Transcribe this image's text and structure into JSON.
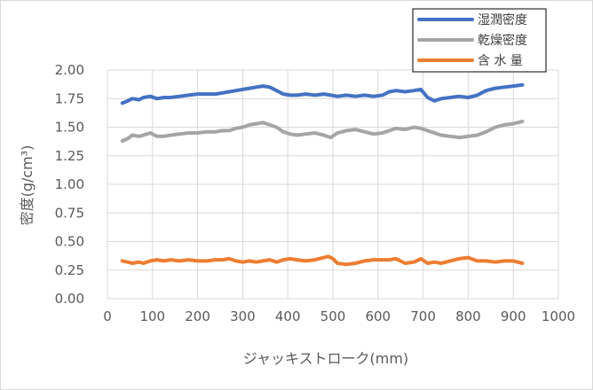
{
  "chart_data": {
    "type": "line",
    "xlabel": "ジャッキストローク(mm)",
    "ylabel": "密度(g/cm³)",
    "xlim": [
      0,
      1000
    ],
    "ylim": [
      0,
      2.0
    ],
    "xticks": [
      0,
      100,
      200,
      300,
      400,
      500,
      600,
      700,
      800,
      900,
      1000
    ],
    "xtick_labels": [
      "0",
      "100",
      "200",
      "300",
      "400",
      "500",
      "600",
      "700",
      "800",
      "900",
      "1000"
    ],
    "yticks": [
      0,
      0.25,
      0.5,
      0.75,
      1.0,
      1.25,
      1.5,
      1.75,
      2.0
    ],
    "ytick_labels": [
      "0.00",
      "0.25",
      "0.50",
      "0.75",
      "1.00",
      "1.25",
      "1.50",
      "1.75",
      "2.00"
    ],
    "grid": true,
    "legend_position": "top-right",
    "series": [
      {
        "name": "湿潤密度",
        "color": "#4472C4",
        "x": [
          33,
          45,
          55,
          70,
          80,
          95,
          110,
          125,
          140,
          160,
          180,
          200,
          220,
          240,
          255,
          270,
          285,
          300,
          315,
          330,
          345,
          360,
          375,
          390,
          405,
          420,
          440,
          460,
          480,
          495,
          510,
          530,
          550,
          570,
          590,
          610,
          625,
          640,
          660,
          680,
          695,
          710,
          725,
          740,
          760,
          780,
          800,
          820,
          840,
          860,
          880,
          900,
          920
        ],
        "y": [
          1.71,
          1.73,
          1.75,
          1.74,
          1.76,
          1.77,
          1.75,
          1.76,
          1.76,
          1.77,
          1.78,
          1.79,
          1.79,
          1.79,
          1.8,
          1.81,
          1.82,
          1.83,
          1.84,
          1.85,
          1.86,
          1.85,
          1.82,
          1.79,
          1.78,
          1.78,
          1.79,
          1.78,
          1.79,
          1.78,
          1.77,
          1.78,
          1.77,
          1.78,
          1.77,
          1.78,
          1.81,
          1.82,
          1.81,
          1.82,
          1.83,
          1.76,
          1.73,
          1.75,
          1.76,
          1.77,
          1.76,
          1.78,
          1.82,
          1.84,
          1.85,
          1.86,
          1.87
        ]
      },
      {
        "name": "乾燥密度",
        "color": "#A5A5A5",
        "x": [
          33,
          45,
          55,
          70,
          80,
          95,
          110,
          125,
          140,
          160,
          180,
          200,
          220,
          240,
          255,
          270,
          285,
          300,
          315,
          330,
          345,
          360,
          375,
          390,
          405,
          420,
          440,
          460,
          480,
          495,
          510,
          530,
          550,
          570,
          590,
          610,
          625,
          640,
          660,
          680,
          695,
          710,
          725,
          740,
          760,
          780,
          800,
          820,
          840,
          860,
          880,
          900,
          920
        ],
        "y": [
          1.38,
          1.4,
          1.43,
          1.42,
          1.43,
          1.45,
          1.42,
          1.42,
          1.43,
          1.44,
          1.45,
          1.45,
          1.46,
          1.46,
          1.47,
          1.47,
          1.49,
          1.5,
          1.52,
          1.53,
          1.54,
          1.52,
          1.5,
          1.46,
          1.44,
          1.43,
          1.44,
          1.45,
          1.43,
          1.41,
          1.45,
          1.47,
          1.48,
          1.46,
          1.44,
          1.45,
          1.47,
          1.49,
          1.48,
          1.5,
          1.49,
          1.47,
          1.45,
          1.43,
          1.42,
          1.41,
          1.42,
          1.43,
          1.46,
          1.5,
          1.52,
          1.53,
          1.55
        ]
      },
      {
        "name": "含 水 量",
        "color": "#ED7D31",
        "x": [
          33,
          45,
          55,
          70,
          80,
          95,
          110,
          125,
          140,
          160,
          180,
          200,
          220,
          240,
          255,
          270,
          285,
          300,
          315,
          330,
          345,
          360,
          375,
          390,
          405,
          420,
          440,
          460,
          480,
          490,
          500,
          510,
          530,
          550,
          570,
          590,
          610,
          625,
          640,
          660,
          680,
          695,
          710,
          725,
          740,
          760,
          780,
          800,
          820,
          840,
          860,
          880,
          900,
          920
        ],
        "y": [
          0.33,
          0.32,
          0.31,
          0.32,
          0.31,
          0.33,
          0.34,
          0.33,
          0.34,
          0.33,
          0.34,
          0.33,
          0.33,
          0.34,
          0.34,
          0.35,
          0.33,
          0.32,
          0.33,
          0.32,
          0.33,
          0.34,
          0.32,
          0.34,
          0.35,
          0.34,
          0.33,
          0.34,
          0.36,
          0.37,
          0.35,
          0.31,
          0.3,
          0.31,
          0.33,
          0.34,
          0.34,
          0.34,
          0.35,
          0.31,
          0.32,
          0.35,
          0.31,
          0.32,
          0.31,
          0.33,
          0.35,
          0.36,
          0.33,
          0.33,
          0.32,
          0.33,
          0.33,
          0.31
        ]
      }
    ]
  }
}
